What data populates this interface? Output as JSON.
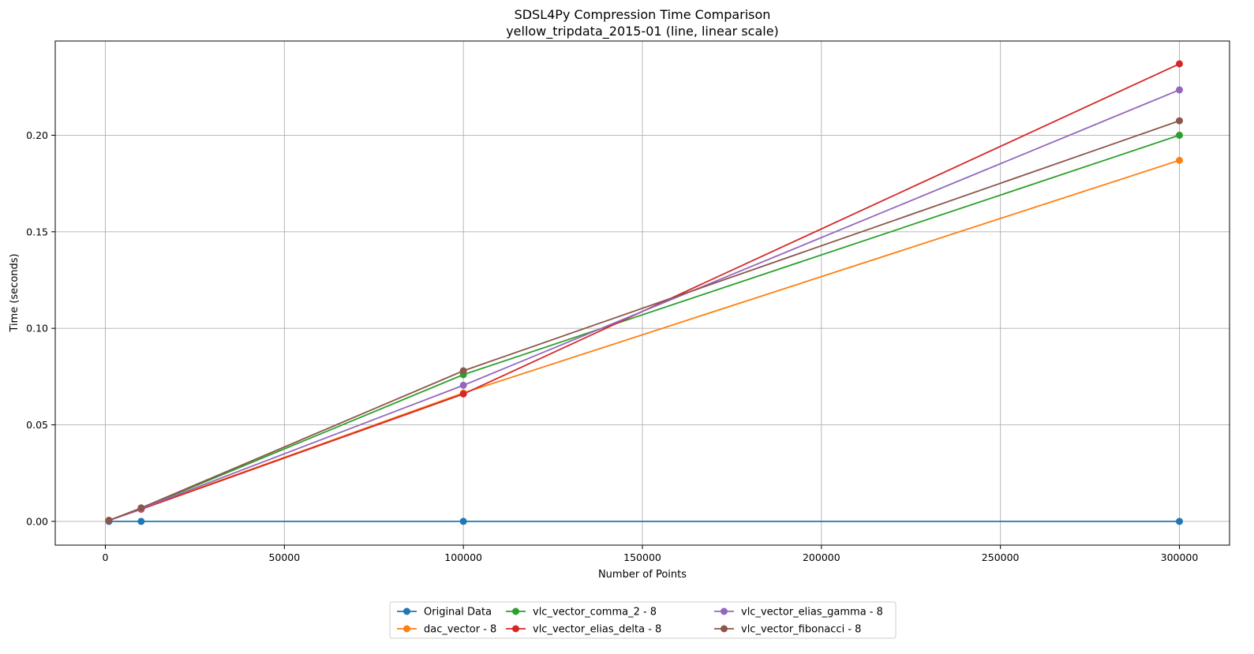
{
  "chart_data": {
    "type": "line",
    "title": "SDSL4Py Compression Time Comparison",
    "subtitle": "yellow_tripdata_2015-01 (line, linear scale)",
    "xlabel": "Number of Points",
    "ylabel": "Time (seconds)",
    "xlim": [
      -14000,
      314000
    ],
    "ylim": [
      -0.0123,
      0.2488
    ],
    "x_ticks": [
      0,
      50000,
      100000,
      150000,
      200000,
      250000,
      300000
    ],
    "x_tick_labels": [
      "0",
      "50000",
      "100000",
      "150000",
      "200000",
      "250000",
      "300000"
    ],
    "y_ticks": [
      0.0,
      0.05,
      0.1,
      0.15,
      0.2
    ],
    "y_tick_labels": [
      "0.00",
      "0.05",
      "0.10",
      "0.15",
      "0.20"
    ],
    "grid": true,
    "legend_position": "bottom-center, outside plot, 3 columns",
    "series": [
      {
        "name": "Original Data",
        "color": "#1f77b4",
        "x": [
          1000,
          10000,
          100000,
          300000
        ],
        "values": [
          0.0,
          0.0,
          0.0,
          0.0
        ]
      },
      {
        "name": "dac_vector - 8",
        "color": "#ff7f0e",
        "x": [
          1000,
          10000,
          100000,
          300000
        ],
        "values": [
          0.0005,
          0.0065,
          0.0665,
          0.187
        ]
      },
      {
        "name": "vlc_vector_comma_2 - 8",
        "color": "#2ca02c",
        "x": [
          1000,
          10000,
          100000,
          300000
        ],
        "values": [
          0.0005,
          0.0068,
          0.076,
          0.2
        ]
      },
      {
        "name": "vlc_vector_elias_delta - 8",
        "color": "#d62728",
        "x": [
          1000,
          10000,
          100000,
          300000
        ],
        "values": [
          0.0005,
          0.0063,
          0.066,
          0.237
        ]
      },
      {
        "name": "vlc_vector_elias_gamma - 8",
        "color": "#9467bd",
        "x": [
          1000,
          10000,
          100000,
          300000
        ],
        "values": [
          0.0005,
          0.0066,
          0.0705,
          0.2235
        ]
      },
      {
        "name": "vlc_vector_fibonacci - 8",
        "color": "#8c564b",
        "x": [
          1000,
          10000,
          100000,
          300000
        ],
        "values": [
          0.0005,
          0.007,
          0.078,
          0.2075
        ]
      }
    ]
  }
}
